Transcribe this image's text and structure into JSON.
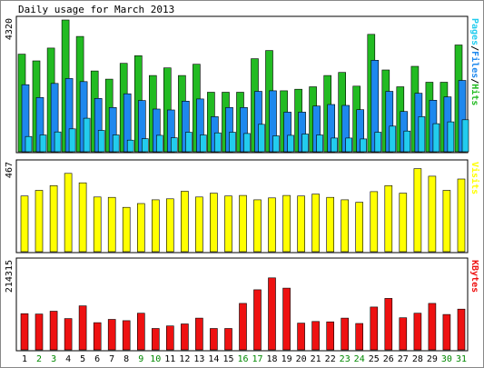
{
  "title": "Daily usage for March 2013",
  "colors": {
    "hits": "#22bb22",
    "files": "#1e88ee",
    "pages": "#22ccee",
    "visits": "#ffff00",
    "kbytes": "#ee1111",
    "weekday_label": "#000000",
    "weekend_label": "#008800"
  },
  "chart_data": [
    {
      "type": "bar",
      "panel": "hits",
      "ytick_max_label": "4320",
      "right_label": {
        "parts": [
          {
            "text": "Pages",
            "color": "#22ccee"
          },
          {
            "text": "/",
            "color": "#000000"
          },
          {
            "text": "Files",
            "color": "#1e88ee"
          },
          {
            "text": "/",
            "color": "#000000"
          },
          {
            "text": "Hits",
            "color": "#22bb22"
          }
        ]
      },
      "ylim": [
        0,
        4320
      ],
      "categories": [
        "1",
        "2",
        "3",
        "4",
        "5",
        "6",
        "7",
        "8",
        "9",
        "10",
        "11",
        "12",
        "13",
        "14",
        "15",
        "16",
        "17",
        "18",
        "19",
        "20",
        "21",
        "22",
        "23",
        "24",
        "25",
        "26",
        "27",
        "28",
        "29",
        "30",
        "31"
      ],
      "series": [
        {
          "name": "Hits",
          "color": "#22bb22",
          "values": [
            3200,
            2980,
            3400,
            4320,
            3780,
            2650,
            2380,
            2900,
            3150,
            2500,
            2750,
            2500,
            2870,
            1950,
            1950,
            1950,
            3050,
            3320,
            2000,
            2050,
            2130,
            2500,
            2600,
            2150,
            3850,
            2680,
            2130,
            2800,
            2280,
            2280,
            3500
          ]
        },
        {
          "name": "Files",
          "color": "#1e88ee",
          "values": [
            2200,
            1780,
            2240,
            2400,
            2300,
            1750,
            1450,
            1900,
            1680,
            1400,
            1370,
            1660,
            1730,
            1150,
            1450,
            1450,
            1980,
            2000,
            1300,
            1300,
            1500,
            1550,
            1520,
            1380,
            3000,
            1980,
            1320,
            1920,
            1690,
            1800,
            2340
          ]
        },
        {
          "name": "Pages",
          "color": "#22ccee",
          "values": [
            500,
            550,
            650,
            750,
            1100,
            700,
            550,
            380,
            430,
            540,
            460,
            640,
            550,
            620,
            640,
            600,
            900,
            520,
            540,
            580,
            550,
            450,
            450,
            420,
            640,
            840,
            680,
            1150,
            920,
            980,
            1050
          ]
        }
      ]
    },
    {
      "type": "bar",
      "panel": "visits",
      "ytick_max_label": "467",
      "right_label": {
        "parts": [
          {
            "text": "Visits",
            "color": "#ffff00"
          }
        ]
      },
      "ylim": [
        0,
        467
      ],
      "categories": [
        "1",
        "2",
        "3",
        "4",
        "5",
        "6",
        "7",
        "8",
        "9",
        "10",
        "11",
        "12",
        "13",
        "14",
        "15",
        "16",
        "17",
        "18",
        "19",
        "20",
        "21",
        "22",
        "23",
        "24",
        "25",
        "26",
        "27",
        "28",
        "29",
        "30",
        "31"
      ],
      "series": [
        {
          "name": "Visits",
          "color": "#ffff00",
          "values": [
            295,
            325,
            350,
            415,
            365,
            290,
            288,
            235,
            255,
            275,
            280,
            320,
            290,
            310,
            295,
            298,
            275,
            285,
            298,
            295,
            305,
            288,
            275,
            262,
            318,
            350,
            310,
            440,
            400,
            325,
            385
          ]
        }
      ]
    },
    {
      "type": "bar",
      "panel": "kbytes",
      "ytick_max_label": "214315",
      "right_label": {
        "parts": [
          {
            "text": "KBytes",
            "color": "#ee1111"
          }
        ]
      },
      "ylim": [
        0,
        214315
      ],
      "categories": [
        "1",
        "2",
        "3",
        "4",
        "5",
        "6",
        "7",
        "8",
        "9",
        "10",
        "11",
        "12",
        "13",
        "14",
        "15",
        "16",
        "17",
        "18",
        "19",
        "20",
        "21",
        "22",
        "23",
        "24",
        "25",
        "26",
        "27",
        "28",
        "29",
        "30",
        "31"
      ],
      "series": [
        {
          "name": "KBytes",
          "color": "#ee1111",
          "values": [
            88000,
            87000,
            94000,
            76000,
            107000,
            66000,
            74000,
            71000,
            89000,
            52000,
            58000,
            63000,
            77000,
            52000,
            52000,
            113000,
            146000,
            175000,
            150000,
            65000,
            69000,
            68000,
            77000,
            64000,
            104000,
            125000,
            78000,
            89000,
            113000,
            86000,
            99000
          ]
        }
      ]
    }
  ],
  "x_labels": [
    {
      "text": "1",
      "weekend": false
    },
    {
      "text": "2",
      "weekend": true
    },
    {
      "text": "3",
      "weekend": true
    },
    {
      "text": "4",
      "weekend": false
    },
    {
      "text": "5",
      "weekend": false
    },
    {
      "text": "6",
      "weekend": false
    },
    {
      "text": "7",
      "weekend": false
    },
    {
      "text": "8",
      "weekend": false
    },
    {
      "text": "9",
      "weekend": true
    },
    {
      "text": "10",
      "weekend": true
    },
    {
      "text": "11",
      "weekend": false
    },
    {
      "text": "12",
      "weekend": false
    },
    {
      "text": "13",
      "weekend": false
    },
    {
      "text": "14",
      "weekend": false
    },
    {
      "text": "15",
      "weekend": false
    },
    {
      "text": "16",
      "weekend": true
    },
    {
      "text": "17",
      "weekend": true
    },
    {
      "text": "18",
      "weekend": false
    },
    {
      "text": "19",
      "weekend": false
    },
    {
      "text": "20",
      "weekend": false
    },
    {
      "text": "21",
      "weekend": false
    },
    {
      "text": "22",
      "weekend": false
    },
    {
      "text": "23",
      "weekend": true
    },
    {
      "text": "24",
      "weekend": true
    },
    {
      "text": "25",
      "weekend": false
    },
    {
      "text": "26",
      "weekend": false
    },
    {
      "text": "27",
      "weekend": false
    },
    {
      "text": "28",
      "weekend": false
    },
    {
      "text": "29",
      "weekend": false
    },
    {
      "text": "30",
      "weekend": true
    },
    {
      "text": "31",
      "weekend": true
    }
  ]
}
